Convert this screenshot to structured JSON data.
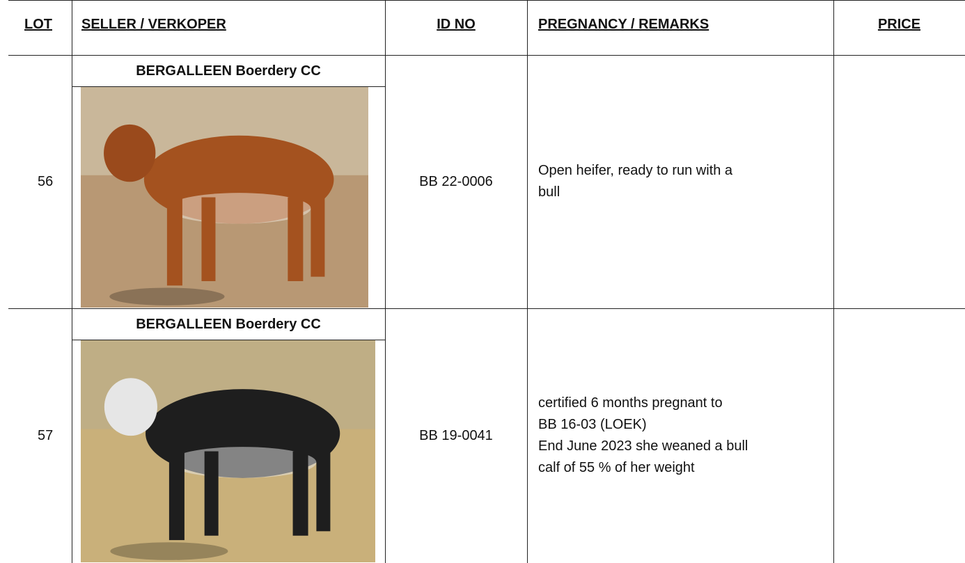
{
  "header": {
    "lot": "LOT",
    "seller": "SELLER / VERKOPER",
    "id_no": "ID NO",
    "remarks": "PREGNANCY  /  REMARKS",
    "price": "PRICE"
  },
  "rows": [
    {
      "lot": "56",
      "seller": "BERGALLEEN Boerdery CC",
      "id_no": "BB 22-0006",
      "remarks": [
        "Open heifer, ready to run with a",
        "bull"
      ]
    },
    {
      "lot": "57",
      "seller": "BERGALLEEN Boerdery CC",
      "id_no": "BB 19-0041",
      "remarks": [
        "certified 6 months pregnant to",
        "BB 16-03  (LOEK)",
        "End June 2023 she weaned a bull",
        "calf of 55 % of her weight"
      ]
    }
  ]
}
